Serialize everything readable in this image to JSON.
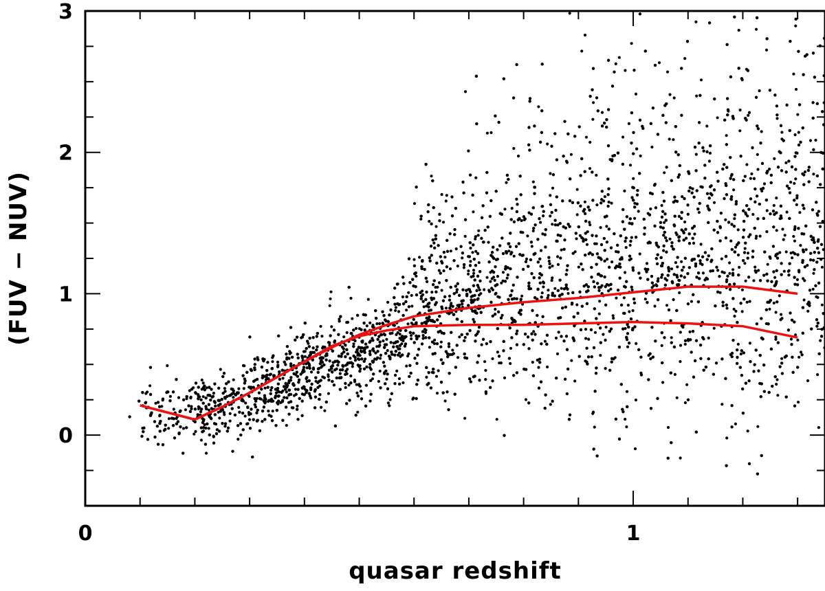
{
  "chart_data": {
    "type": "scatter",
    "title": "",
    "xlabel": "quasar redshift",
    "ylabel": "(FUV − NUV)",
    "xlim": [
      0,
      1.35
    ],
    "ylim": [
      -0.5,
      3
    ],
    "x_ticks": [
      {
        "value": 0,
        "label": "0"
      },
      {
        "value": 1,
        "label": "1"
      }
    ],
    "y_ticks": [
      {
        "value": 0,
        "label": "0"
      },
      {
        "value": 1,
        "label": "1"
      },
      {
        "value": 2,
        "label": "2"
      },
      {
        "value": 3,
        "label": "3"
      }
    ],
    "x_minor_step": 0.1,
    "y_minor_step": 0.25,
    "grid": false,
    "legend": "none",
    "colors": {
      "points": "#000000",
      "curves": "#ee1111"
    },
    "scatter_description": "Dense cloud of several thousand quasars; color trend rising from about 0.2 at z=0.2 to about 0.9 at z=0.6, then broad scatter between 0.4 and 3 for z>0.7.",
    "trend": {
      "x": [
        0.1,
        0.2,
        0.3,
        0.4,
        0.5,
        0.6,
        0.7,
        0.8,
        0.9,
        1.0,
        1.1,
        1.2,
        1.35
      ],
      "y": [
        0.18,
        0.17,
        0.28,
        0.45,
        0.58,
        0.75,
        0.85,
        0.92,
        0.98,
        1.02,
        1.04,
        1.05,
        1.05
      ],
      "spread": [
        0.12,
        0.12,
        0.13,
        0.14,
        0.16,
        0.22,
        0.3,
        0.36,
        0.42,
        0.45,
        0.48,
        0.5,
        0.5
      ]
    },
    "series": [
      {
        "type": "line",
        "x": [
          0.1,
          0.2,
          0.25,
          0.3,
          0.35,
          0.4,
          0.45,
          0.5,
          0.55,
          0.6,
          0.7,
          0.8,
          0.9,
          1.0,
          1.1,
          1.2,
          1.3
        ],
        "y": [
          0.21,
          0.11,
          0.2,
          0.3,
          0.41,
          0.52,
          0.62,
          0.71,
          0.78,
          0.84,
          0.9,
          0.94,
          0.97,
          1.01,
          1.05,
          1.05,
          1.0
        ]
      },
      {
        "type": "line",
        "x": [
          0.1,
          0.2,
          0.25,
          0.3,
          0.35,
          0.4,
          0.45,
          0.5,
          0.55,
          0.6,
          0.7,
          0.8,
          0.9,
          1.0,
          1.1,
          1.2,
          1.3
        ],
        "y": [
          0.21,
          0.11,
          0.2,
          0.3,
          0.41,
          0.52,
          0.63,
          0.7,
          0.74,
          0.77,
          0.78,
          0.78,
          0.79,
          0.8,
          0.79,
          0.77,
          0.69
        ]
      }
    ]
  }
}
